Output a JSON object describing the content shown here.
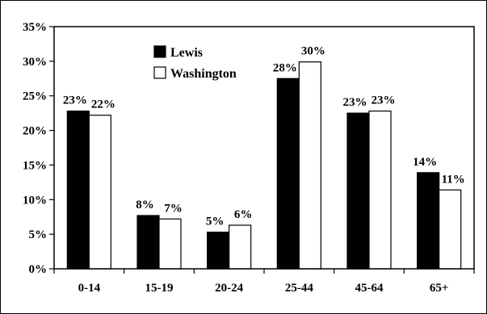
{
  "chart_data": {
    "type": "bar",
    "categories": [
      "0-14",
      "15-19",
      "20-24",
      "25-44",
      "45-64",
      "65+"
    ],
    "series": [
      {
        "name": "Lewis",
        "values": [
          22.8,
          7.7,
          5.3,
          27.5,
          22.5,
          13.9
        ],
        "labels": [
          "23%",
          "8%",
          "5%",
          "28%",
          "23%",
          "14%"
        ],
        "fill": "#000000"
      },
      {
        "name": "Washington",
        "values": [
          22.2,
          7.2,
          6.3,
          29.9,
          22.8,
          11.4
        ],
        "labels": [
          "22%",
          "7%",
          "6%",
          "30%",
          "23%",
          "11%"
        ],
        "fill": "#ffffff"
      }
    ],
    "ylim": [
      0,
      35
    ],
    "yticks": [
      0,
      5,
      10,
      15,
      20,
      25,
      30,
      35
    ],
    "ytick_labels": [
      "0%",
      "5%",
      "10%",
      "15%",
      "20%",
      "25%",
      "30%",
      "35%"
    ],
    "grid": false,
    "legend_position": "top-left",
    "title": "",
    "xlabel": "",
    "ylabel": ""
  }
}
